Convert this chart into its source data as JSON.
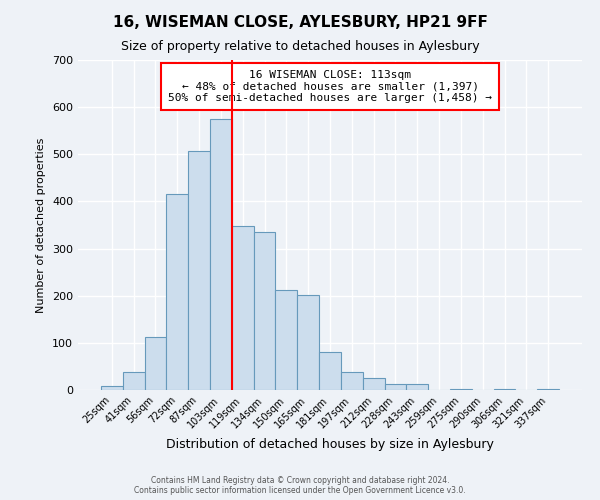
{
  "title": "16, WISEMAN CLOSE, AYLESBURY, HP21 9FF",
  "subtitle": "Size of property relative to detached houses in Aylesbury",
  "xlabel": "Distribution of detached houses by size in Aylesbury",
  "ylabel": "Number of detached properties",
  "bar_color": "#ccdded",
  "bar_edge_color": "#6699bb",
  "categories": [
    "25sqm",
    "41sqm",
    "56sqm",
    "72sqm",
    "87sqm",
    "103sqm",
    "119sqm",
    "134sqm",
    "150sqm",
    "165sqm",
    "181sqm",
    "197sqm",
    "212sqm",
    "228sqm",
    "243sqm",
    "259sqm",
    "275sqm",
    "290sqm",
    "306sqm",
    "321sqm",
    "337sqm"
  ],
  "values": [
    8,
    38,
    113,
    415,
    508,
    575,
    348,
    335,
    212,
    202,
    80,
    38,
    26,
    13,
    13,
    0,
    3,
    0,
    2,
    0,
    2
  ],
  "ylim": [
    0,
    700
  ],
  "yticks": [
    0,
    100,
    200,
    300,
    400,
    500,
    600,
    700
  ],
  "annotation_text": "16 WISEMAN CLOSE: 113sqm\n← 48% of detached houses are smaller (1,397)\n50% of semi-detached houses are larger (1,458) →",
  "vline_color": "red",
  "annotation_box_color": "#ffffff",
  "annotation_box_edge_color": "red",
  "footer_text": "Contains HM Land Registry data © Crown copyright and database right 2024.\nContains public sector information licensed under the Open Government Licence v3.0.",
  "background_color": "#eef2f7",
  "grid_color": "#ffffff"
}
